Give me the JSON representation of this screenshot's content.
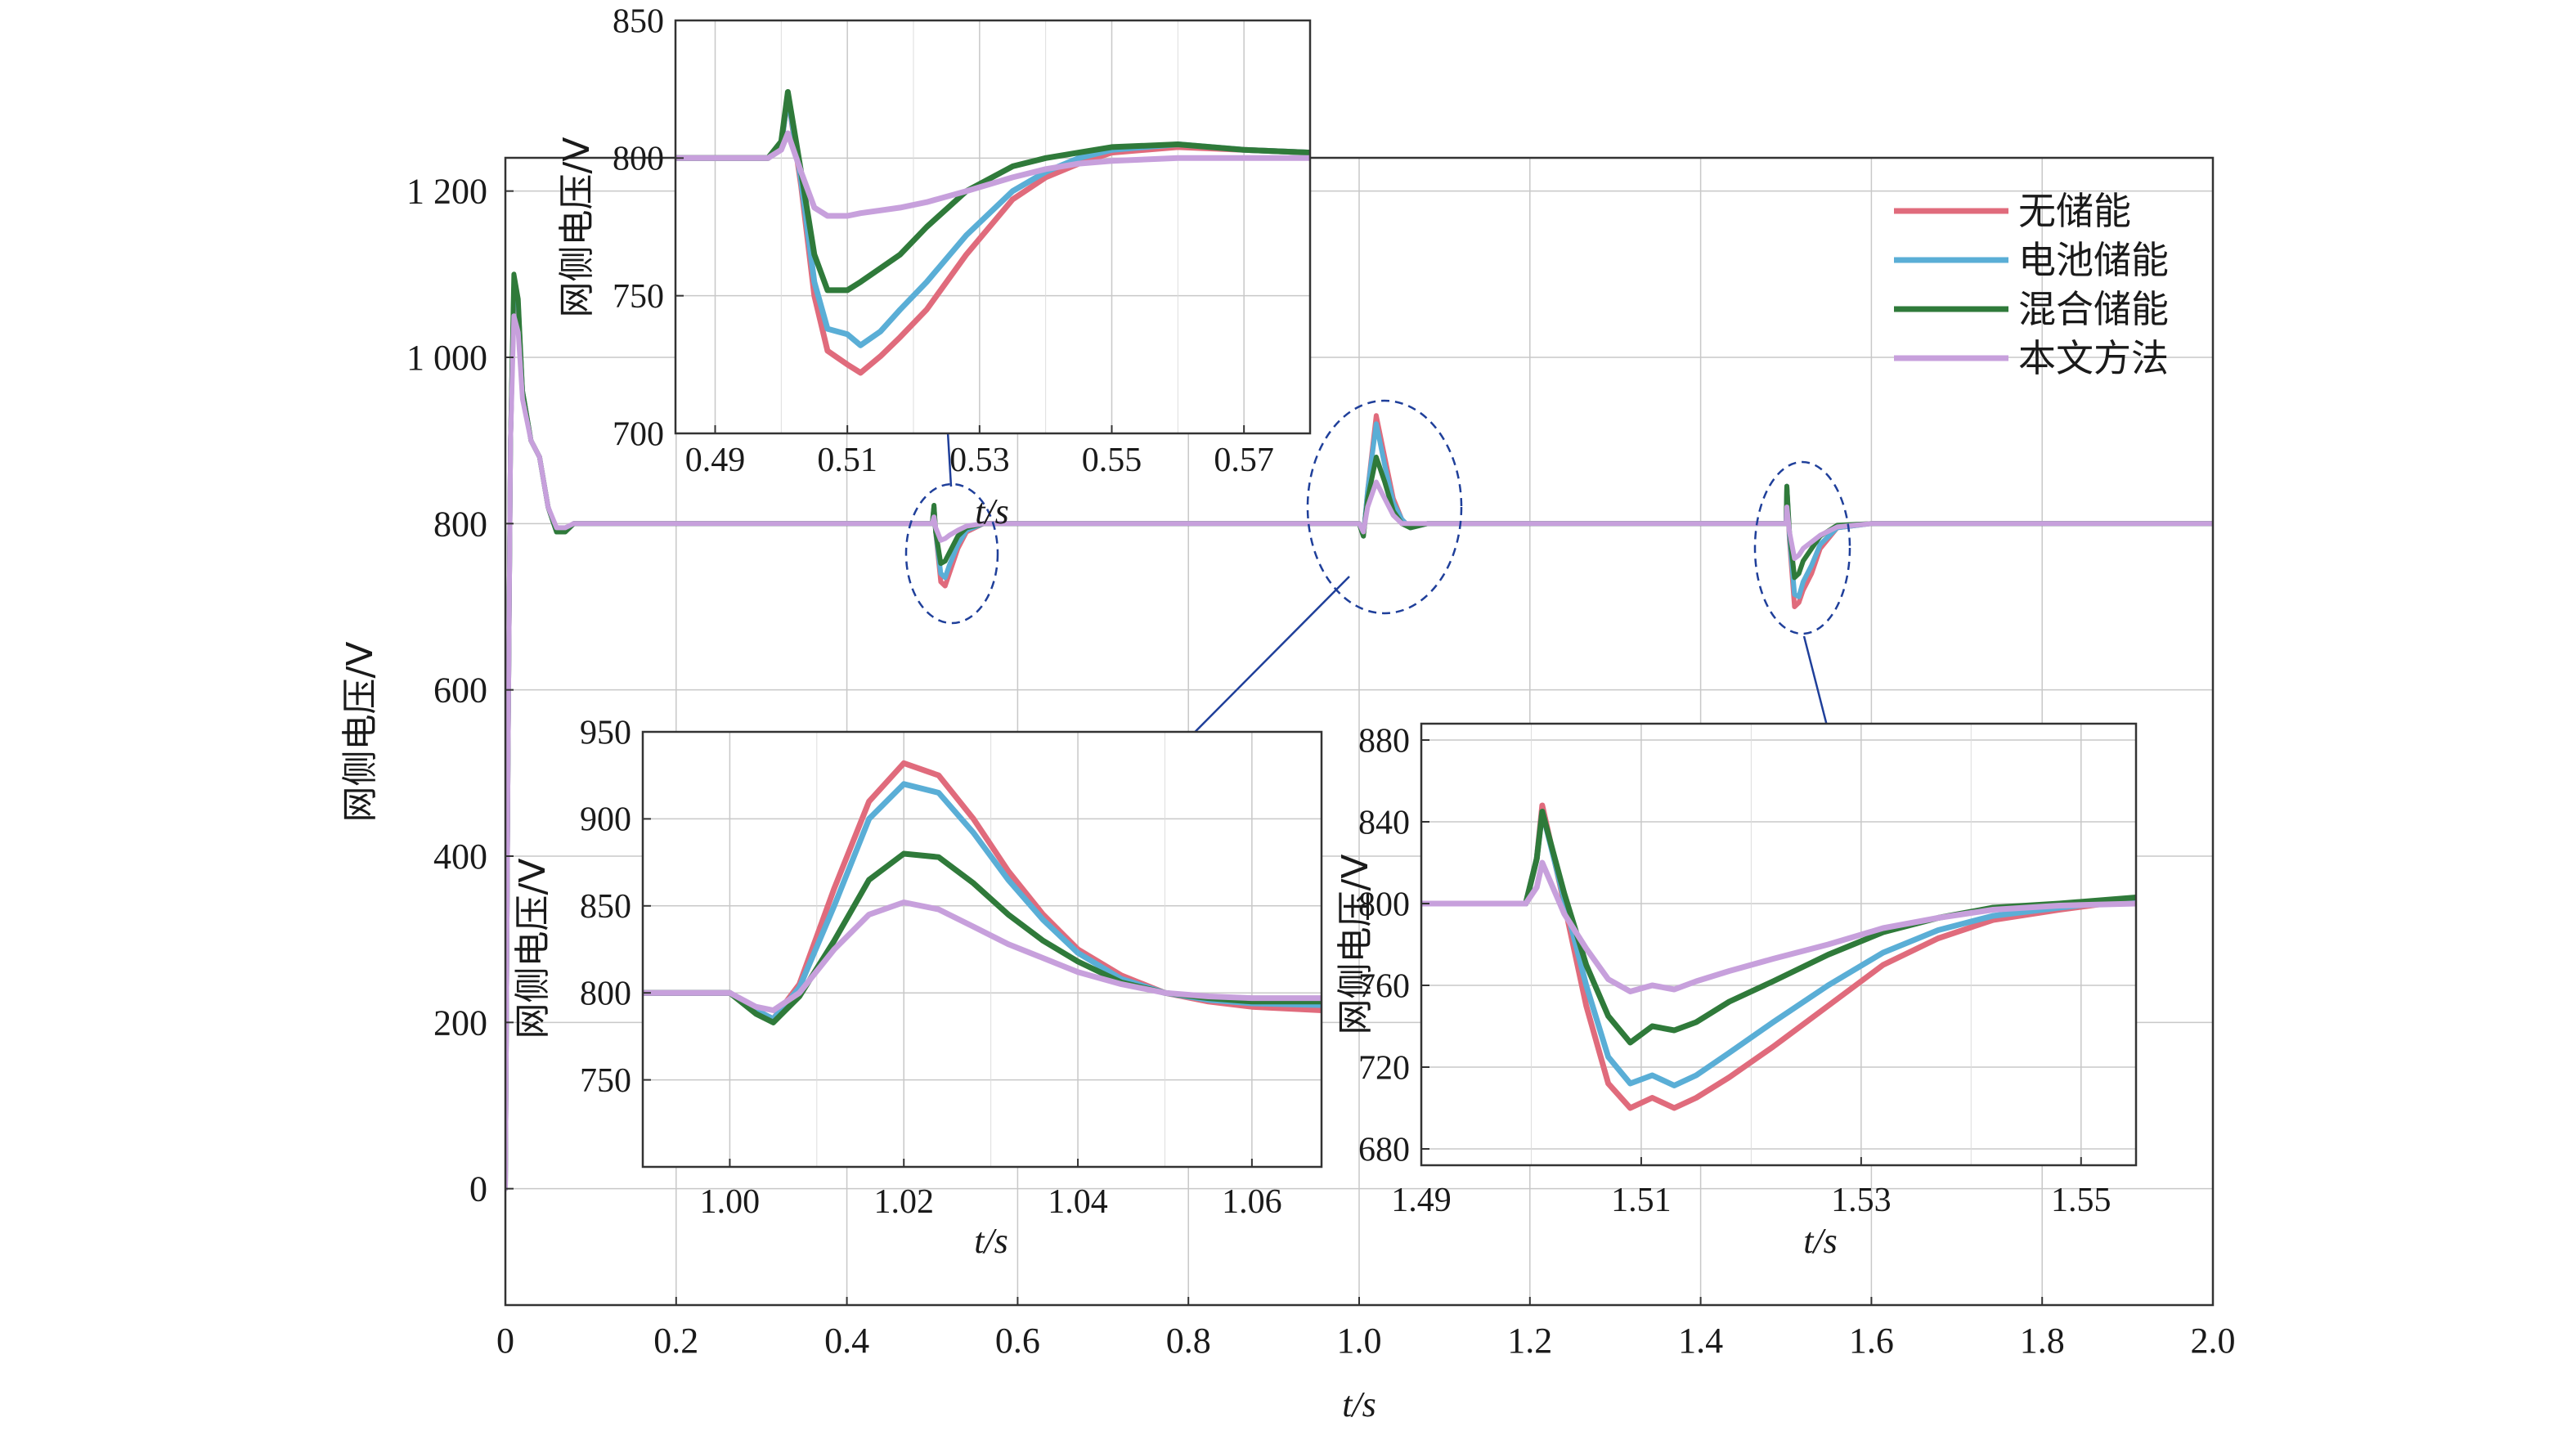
{
  "colors": {
    "no_storage": "#e06b7c",
    "battery": "#5aaed6",
    "hybrid": "#2f7a3a",
    "proposed": "#c7a0dc",
    "annotation": "#1f3f9a",
    "grid": "#c8c8c8"
  },
  "chart_data": [
    {
      "id": "main",
      "type": "line",
      "xlabel": "t/s",
      "ylabel": "网侧电压/V",
      "xlim": [
        0,
        2.0
      ],
      "ylim": [
        -140,
        1240
      ],
      "xticks": [
        0,
        0.2,
        0.4,
        0.6,
        0.8,
        1.0,
        1.2,
        1.4,
        1.6,
        1.8,
        2.0
      ],
      "xtick_labels": [
        "0",
        "0.2",
        "0.4",
        "0.6",
        "0.8",
        "1.0",
        "1.2",
        "1.4",
        "1.6",
        "1.8",
        "2.0"
      ],
      "yticks": [
        0,
        200,
        400,
        600,
        800,
        1000,
        1200
      ],
      "ytick_labels": [
        "0",
        "200",
        "400",
        "600",
        "800",
        "1 000",
        "1 200"
      ],
      "grid": true,
      "legend": "top-right",
      "series": [
        {
          "name": "无储能",
          "key": "no_storage",
          "x": [
            0,
            0.003,
            0.006,
            0.01,
            0.015,
            0.02,
            0.03,
            0.04,
            0.05,
            0.06,
            0.07,
            0.08,
            0.1,
            0.12,
            0.5,
            0.502,
            0.504,
            0.51,
            0.515,
            0.52,
            0.53,
            0.54,
            0.56,
            0.6,
            1.0,
            1.005,
            1.01,
            1.02,
            1.03,
            1.04,
            1.05,
            1.06,
            1.08,
            1.5,
            1.501,
            1.504,
            1.51,
            1.515,
            1.52,
            1.53,
            1.54,
            1.56,
            1.6,
            2.0
          ],
          "y": [
            0,
            500,
            900,
            1080,
            1060,
            960,
            900,
            880,
            820,
            790,
            790,
            800,
            800,
            800,
            800,
            820,
            790,
            730,
            725,
            740,
            770,
            790,
            800,
            800,
            800,
            785,
            840,
            930,
            880,
            830,
            805,
            795,
            800,
            800,
            845,
            780,
            700,
            705,
            720,
            740,
            770,
            795,
            800,
            800
          ]
        },
        {
          "name": "电池储能",
          "key": "battery",
          "x": [
            0,
            0.003,
            0.006,
            0.01,
            0.015,
            0.02,
            0.03,
            0.04,
            0.05,
            0.06,
            0.07,
            0.08,
            0.1,
            0.12,
            0.5,
            0.502,
            0.504,
            0.51,
            0.515,
            0.52,
            0.53,
            0.54,
            0.56,
            0.6,
            1.0,
            1.005,
            1.01,
            1.02,
            1.03,
            1.04,
            1.05,
            1.06,
            1.08,
            1.5,
            1.501,
            1.504,
            1.51,
            1.515,
            1.52,
            1.53,
            1.54,
            1.56,
            1.6,
            2.0
          ],
          "y": [
            0,
            500,
            900,
            1085,
            1065,
            960,
            900,
            880,
            820,
            790,
            790,
            800,
            800,
            800,
            800,
            820,
            790,
            740,
            735,
            750,
            775,
            792,
            800,
            800,
            800,
            785,
            840,
            920,
            870,
            825,
            805,
            795,
            800,
            800,
            845,
            785,
            715,
            712,
            730,
            750,
            775,
            795,
            800,
            800
          ]
        },
        {
          "name": "混合储能",
          "key": "hybrid",
          "x": [
            0,
            0.003,
            0.006,
            0.01,
            0.015,
            0.02,
            0.03,
            0.04,
            0.05,
            0.06,
            0.07,
            0.08,
            0.1,
            0.12,
            0.5,
            0.502,
            0.504,
            0.51,
            0.515,
            0.52,
            0.53,
            0.54,
            0.56,
            0.6,
            1.0,
            1.005,
            1.01,
            1.02,
            1.03,
            1.04,
            1.05,
            1.06,
            1.08,
            1.5,
            1.501,
            1.504,
            1.51,
            1.515,
            1.52,
            1.53,
            1.54,
            1.56,
            1.6,
            2.0
          ],
          "y": [
            0,
            500,
            900,
            1100,
            1070,
            960,
            900,
            880,
            820,
            790,
            790,
            800,
            800,
            800,
            800,
            822,
            790,
            752,
            755,
            765,
            785,
            795,
            800,
            800,
            800,
            785,
            830,
            880,
            850,
            815,
            800,
            795,
            800,
            800,
            845,
            790,
            735,
            740,
            755,
            770,
            785,
            798,
            800,
            800
          ]
        },
        {
          "name": "本文方法",
          "key": "proposed",
          "x": [
            0,
            0.003,
            0.006,
            0.01,
            0.015,
            0.02,
            0.03,
            0.04,
            0.05,
            0.06,
            0.07,
            0.08,
            0.1,
            0.12,
            0.5,
            0.502,
            0.504,
            0.51,
            0.515,
            0.52,
            0.53,
            0.54,
            0.56,
            0.6,
            1.0,
            1.005,
            1.01,
            1.02,
            1.03,
            1.04,
            1.05,
            1.06,
            1.08,
            1.5,
            1.501,
            1.504,
            1.51,
            1.515,
            1.52,
            1.53,
            1.54,
            1.56,
            1.6,
            2.0
          ],
          "y": [
            0,
            500,
            900,
            1050,
            1030,
            950,
            900,
            880,
            820,
            795,
            795,
            800,
            800,
            800,
            800,
            808,
            795,
            780,
            782,
            786,
            792,
            797,
            800,
            800,
            800,
            790,
            820,
            850,
            830,
            810,
            800,
            800,
            800,
            800,
            820,
            790,
            758,
            762,
            770,
            778,
            786,
            796,
            800,
            800
          ]
        }
      ]
    },
    {
      "id": "inset-0.5",
      "type": "line",
      "xlabel": "t/s",
      "ylabel": "网侧电压/V",
      "xlim": [
        0.484,
        0.58
      ],
      "ylim": [
        700,
        850
      ],
      "xticks": [
        0.49,
        0.51,
        0.53,
        0.55,
        0.57
      ],
      "xtick_labels": [
        "0.49",
        "0.51",
        "0.53",
        "0.55",
        "0.57"
      ],
      "yticks": [
        700,
        750,
        800,
        850
      ],
      "ytick_labels": [
        "700",
        "750",
        "800",
        "850"
      ],
      "grid": true,
      "series": [
        {
          "name": "无储能",
          "key": "no_storage",
          "x": [
            0.484,
            0.49,
            0.498,
            0.5,
            0.501,
            0.503,
            0.505,
            0.507,
            0.51,
            0.512,
            0.515,
            0.518,
            0.522,
            0.528,
            0.535,
            0.54,
            0.545,
            0.55,
            0.56,
            0.57,
            0.58
          ],
          "y": [
            800,
            800,
            800,
            805,
            823,
            790,
            750,
            730,
            725,
            722,
            728,
            735,
            745,
            765,
            785,
            793,
            798,
            802,
            804,
            803,
            802
          ]
        },
        {
          "name": "电池储能",
          "key": "battery",
          "x": [
            0.484,
            0.49,
            0.498,
            0.5,
            0.501,
            0.503,
            0.505,
            0.507,
            0.51,
            0.512,
            0.515,
            0.518,
            0.522,
            0.528,
            0.535,
            0.54,
            0.545,
            0.55,
            0.56,
            0.57,
            0.58
          ],
          "y": [
            800,
            800,
            800,
            805,
            823,
            792,
            755,
            738,
            736,
            732,
            737,
            745,
            755,
            772,
            788,
            795,
            800,
            803,
            805,
            803,
            802
          ]
        },
        {
          "name": "混合储能",
          "key": "hybrid",
          "x": [
            0.484,
            0.49,
            0.498,
            0.5,
            0.501,
            0.503,
            0.505,
            0.507,
            0.51,
            0.512,
            0.515,
            0.518,
            0.522,
            0.528,
            0.535,
            0.54,
            0.545,
            0.55,
            0.56,
            0.57,
            0.58
          ],
          "y": [
            800,
            800,
            800,
            806,
            824,
            795,
            765,
            752,
            752,
            755,
            760,
            765,
            775,
            788,
            797,
            800,
            802,
            804,
            805,
            803,
            802
          ]
        },
        {
          "name": "本文方法",
          "key": "proposed",
          "x": [
            0.484,
            0.49,
            0.498,
            0.5,
            0.501,
            0.503,
            0.505,
            0.507,
            0.51,
            0.512,
            0.515,
            0.518,
            0.522,
            0.528,
            0.535,
            0.54,
            0.545,
            0.55,
            0.56,
            0.57,
            0.58
          ],
          "y": [
            800,
            800,
            800,
            803,
            809,
            795,
            782,
            779,
            779,
            780,
            781,
            782,
            784,
            788,
            793,
            796,
            798,
            799,
            800,
            800,
            800
          ]
        }
      ]
    },
    {
      "id": "inset-1.0",
      "type": "line",
      "xlabel": "t/s",
      "ylabel": "网侧电压/V",
      "xlim": [
        0.99,
        1.068
      ],
      "ylim": [
        700,
        950
      ],
      "xticks": [
        1.0,
        1.02,
        1.04,
        1.06
      ],
      "xtick_labels": [
        "1.00",
        "1.02",
        "1.04",
        "1.06"
      ],
      "yticks": [
        750,
        800,
        850,
        900,
        950
      ],
      "ytick_labels": [
        "750",
        "800",
        "850",
        "900",
        "950"
      ],
      "grid": true,
      "series": [
        {
          "name": "无储能",
          "key": "no_storage",
          "x": [
            0.99,
            0.995,
            1.0,
            1.003,
            1.005,
            1.008,
            1.012,
            1.016,
            1.02,
            1.024,
            1.028,
            1.032,
            1.036,
            1.04,
            1.045,
            1.05,
            1.055,
            1.06,
            1.068
          ],
          "y": [
            800,
            800,
            800,
            790,
            785,
            805,
            860,
            910,
            932,
            925,
            900,
            870,
            845,
            825,
            810,
            800,
            795,
            792,
            790
          ]
        },
        {
          "name": "电池储能",
          "key": "battery",
          "x": [
            0.99,
            0.995,
            1.0,
            1.003,
            1.005,
            1.008,
            1.012,
            1.016,
            1.02,
            1.024,
            1.028,
            1.032,
            1.036,
            1.04,
            1.045,
            1.05,
            1.055,
            1.06,
            1.068
          ],
          "y": [
            800,
            800,
            800,
            790,
            785,
            803,
            850,
            900,
            920,
            915,
            892,
            865,
            842,
            823,
            808,
            800,
            796,
            794,
            793
          ]
        },
        {
          "name": "混合储能",
          "key": "hybrid",
          "x": [
            0.99,
            0.995,
            1.0,
            1.003,
            1.005,
            1.008,
            1.012,
            1.016,
            1.02,
            1.024,
            1.028,
            1.032,
            1.036,
            1.04,
            1.045,
            1.05,
            1.055,
            1.06,
            1.068
          ],
          "y": [
            800,
            800,
            800,
            788,
            783,
            798,
            830,
            865,
            880,
            878,
            863,
            845,
            830,
            818,
            806,
            800,
            797,
            795,
            795
          ]
        },
        {
          "name": "本文方法",
          "key": "proposed",
          "x": [
            0.99,
            0.995,
            1.0,
            1.003,
            1.005,
            1.008,
            1.012,
            1.016,
            1.02,
            1.024,
            1.028,
            1.032,
            1.036,
            1.04,
            1.045,
            1.05,
            1.055,
            1.06,
            1.068
          ],
          "y": [
            800,
            800,
            800,
            792,
            790,
            800,
            825,
            845,
            852,
            848,
            838,
            828,
            820,
            812,
            805,
            800,
            798,
            797,
            797
          ]
        }
      ]
    },
    {
      "id": "inset-1.5",
      "type": "line",
      "xlabel": "t/s",
      "ylabel": "网侧电压/V",
      "xlim": [
        1.49,
        1.555
      ],
      "ylim": [
        672,
        888
      ],
      "xticks": [
        1.49,
        1.51,
        1.53,
        1.55
      ],
      "xtick_labels": [
        "1.49",
        "1.51",
        "1.53",
        "1.55"
      ],
      "yticks": [
        680,
        720,
        760,
        800,
        840,
        880
      ],
      "ytick_labels": [
        "680",
        "720",
        "760",
        "800",
        "840",
        "880"
      ],
      "grid": true,
      "series": [
        {
          "name": "无储能",
          "key": "no_storage",
          "x": [
            1.49,
            1.495,
            1.4995,
            1.5005,
            1.501,
            1.503,
            1.505,
            1.507,
            1.509,
            1.511,
            1.513,
            1.515,
            1.518,
            1.522,
            1.527,
            1.532,
            1.537,
            1.542,
            1.548,
            1.555
          ],
          "y": [
            800,
            800,
            800,
            822,
            848,
            800,
            750,
            712,
            700,
            705,
            700,
            705,
            715,
            730,
            750,
            770,
            783,
            792,
            797,
            802
          ]
        },
        {
          "name": "电池储能",
          "key": "battery",
          "x": [
            1.49,
            1.495,
            1.4995,
            1.5005,
            1.501,
            1.503,
            1.505,
            1.507,
            1.509,
            1.511,
            1.513,
            1.515,
            1.518,
            1.522,
            1.527,
            1.532,
            1.537,
            1.542,
            1.548,
            1.555
          ],
          "y": [
            800,
            800,
            800,
            822,
            845,
            802,
            760,
            725,
            712,
            716,
            711,
            716,
            727,
            742,
            760,
            776,
            787,
            794,
            798,
            802
          ]
        },
        {
          "name": "混合储能",
          "key": "hybrid",
          "x": [
            1.49,
            1.495,
            1.4995,
            1.5005,
            1.501,
            1.503,
            1.505,
            1.507,
            1.509,
            1.511,
            1.513,
            1.515,
            1.518,
            1.522,
            1.527,
            1.532,
            1.537,
            1.542,
            1.548,
            1.555
          ],
          "y": [
            800,
            800,
            800,
            822,
            845,
            805,
            770,
            745,
            732,
            740,
            738,
            742,
            752,
            762,
            775,
            786,
            793,
            798,
            800,
            803
          ]
        },
        {
          "name": "本文方法",
          "key": "proposed",
          "x": [
            1.49,
            1.495,
            1.4995,
            1.5005,
            1.501,
            1.503,
            1.505,
            1.507,
            1.509,
            1.511,
            1.513,
            1.515,
            1.518,
            1.522,
            1.527,
            1.532,
            1.537,
            1.542,
            1.548,
            1.555
          ],
          "y": [
            800,
            800,
            800,
            808,
            820,
            795,
            778,
            763,
            757,
            760,
            758,
            762,
            767,
            773,
            780,
            788,
            793,
            797,
            799,
            800
          ]
        }
      ]
    }
  ]
}
